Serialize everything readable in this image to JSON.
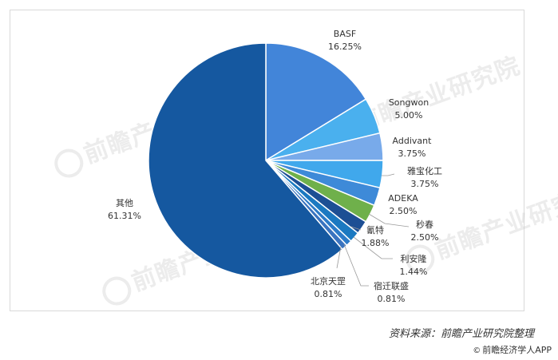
{
  "chart_data": {
    "type": "pie",
    "slices": [
      {
        "name": "BASF",
        "value": 16.25,
        "label": "16.25%",
        "color": "#4285d9"
      },
      {
        "name": "Songwon",
        "value": 5.0,
        "label": "5.00%",
        "color": "#4ab0ee"
      },
      {
        "name": "Addivant",
        "value": 3.75,
        "label": "3.75%",
        "color": "#78aaea"
      },
      {
        "name": "雅宝化工",
        "value": 3.75,
        "label": "3.75%",
        "color": "#40a8ec"
      },
      {
        "name": "ADEKA",
        "value": 2.5,
        "label": "2.50%",
        "color": "#3e8ad8"
      },
      {
        "name": "秒春",
        "value": 2.5,
        "label": "2.50%",
        "color": "#6fb04b"
      },
      {
        "name": "氰特",
        "value": 1.88,
        "label": "1.88%",
        "color": "#1d4f94"
      },
      {
        "name": "利安隆",
        "value": 1.44,
        "label": "1.44%",
        "color": "#1b79c1"
      },
      {
        "name": "宿迁联盛",
        "value": 0.81,
        "label": "0.81%",
        "color": "#2d7bc8"
      },
      {
        "name": "北京天罡",
        "value": 0.81,
        "label": "0.81%",
        "color": "#3a74c0"
      },
      {
        "name": "其他",
        "value": 61.31,
        "label": "61.31%",
        "color": "#1558a0"
      }
    ]
  },
  "watermark": "前瞻产业研究院",
  "source_text": "资料来源：前瞻产业研究院整理",
  "app_text": "前瞻经济学人APP"
}
